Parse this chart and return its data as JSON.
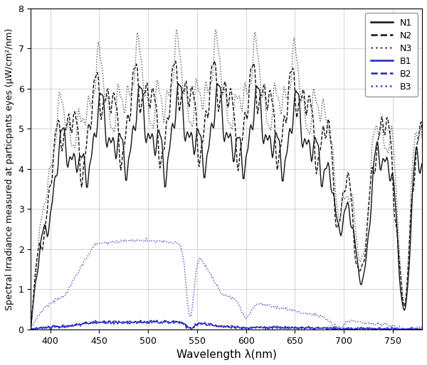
{
  "wl_start": 380,
  "wl_end": 780,
  "wl_step": 1,
  "ylabel": "Spectral Irradiance measured at particpants eyes (μW/cm²/nm)",
  "xlabel": "Wavelength λ(nm)",
  "ylim": [
    0,
    8
  ],
  "xlim": [
    380,
    780
  ],
  "yticks": [
    0,
    1,
    2,
    3,
    4,
    5,
    6,
    7,
    8
  ],
  "xticks": [
    400,
    450,
    500,
    550,
    600,
    650,
    700,
    750
  ],
  "legend_labels": [
    "N1",
    "N2",
    "N3",
    "B1",
    "B2",
    "B3"
  ],
  "line_colors": [
    "#111111",
    "#111111",
    "#555555",
    "#2222bb",
    "#2222bb",
    "#4444cc"
  ],
  "line_styles": [
    "-",
    "--",
    ":",
    "-",
    "--",
    ":"
  ],
  "line_widths": [
    1.0,
    1.0,
    1.0,
    1.0,
    1.0,
    1.0
  ],
  "background_color": "#ffffff",
  "grid_color": "#aaaaaa"
}
